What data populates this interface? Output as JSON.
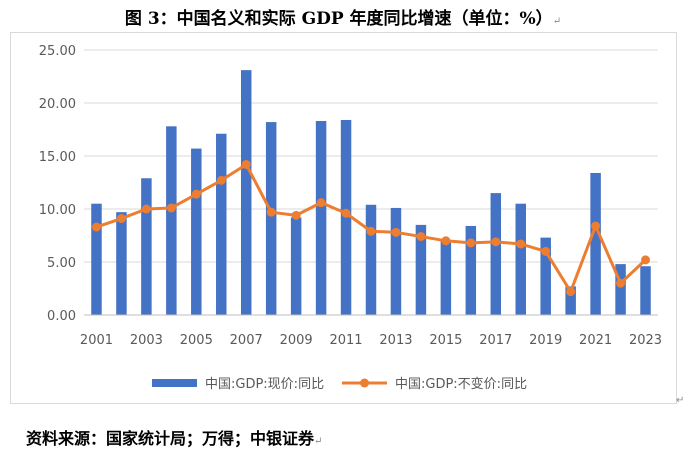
{
  "figure_title": "图 3：中国名义和实际 GDP 年度同比增速（单位：%）",
  "source_note": "资料来源：国家统计局；万得；中银证券",
  "chart_data": {
    "type": "bar",
    "title": "图 3：中国名义和实际 GDP 年度同比增速（单位：%）",
    "xlabel": "",
    "ylabel": "",
    "ylim": [
      0,
      25
    ],
    "yticks": [
      "0.00",
      "5.00",
      "10.00",
      "15.00",
      "20.00",
      "25.00"
    ],
    "grid": true,
    "legend_position": "bottom",
    "categories": [
      "2001",
      "2002",
      "2003",
      "2004",
      "2005",
      "2006",
      "2007",
      "2008",
      "2009",
      "2010",
      "2011",
      "2012",
      "2013",
      "2014",
      "2015",
      "2016",
      "2017",
      "2018",
      "2019",
      "2020",
      "2021",
      "2022",
      "2023"
    ],
    "xtick_labels": [
      "2001",
      "2003",
      "2005",
      "2007",
      "2009",
      "2011",
      "2013",
      "2015",
      "2017",
      "2019",
      "2021",
      "2023"
    ],
    "series": [
      {
        "name": "中国:GDP:现价:同比",
        "type": "bar",
        "color": "#4472c4",
        "values": [
          10.5,
          9.7,
          12.9,
          17.8,
          15.7,
          17.1,
          23.1,
          18.2,
          9.2,
          18.3,
          18.4,
          10.4,
          10.1,
          8.5,
          7.0,
          8.4,
          11.5,
          10.5,
          7.3,
          2.7,
          13.4,
          4.8,
          4.6
        ]
      },
      {
        "name": "中国:GDP:不变价:同比",
        "type": "line",
        "color": "#ed7d31",
        "values": [
          8.3,
          9.1,
          10.0,
          10.1,
          11.4,
          12.7,
          14.2,
          9.7,
          9.4,
          10.6,
          9.6,
          7.9,
          7.8,
          7.4,
          7.0,
          6.8,
          6.9,
          6.7,
          6.0,
          2.2,
          8.4,
          3.0,
          5.2
        ]
      }
    ]
  }
}
